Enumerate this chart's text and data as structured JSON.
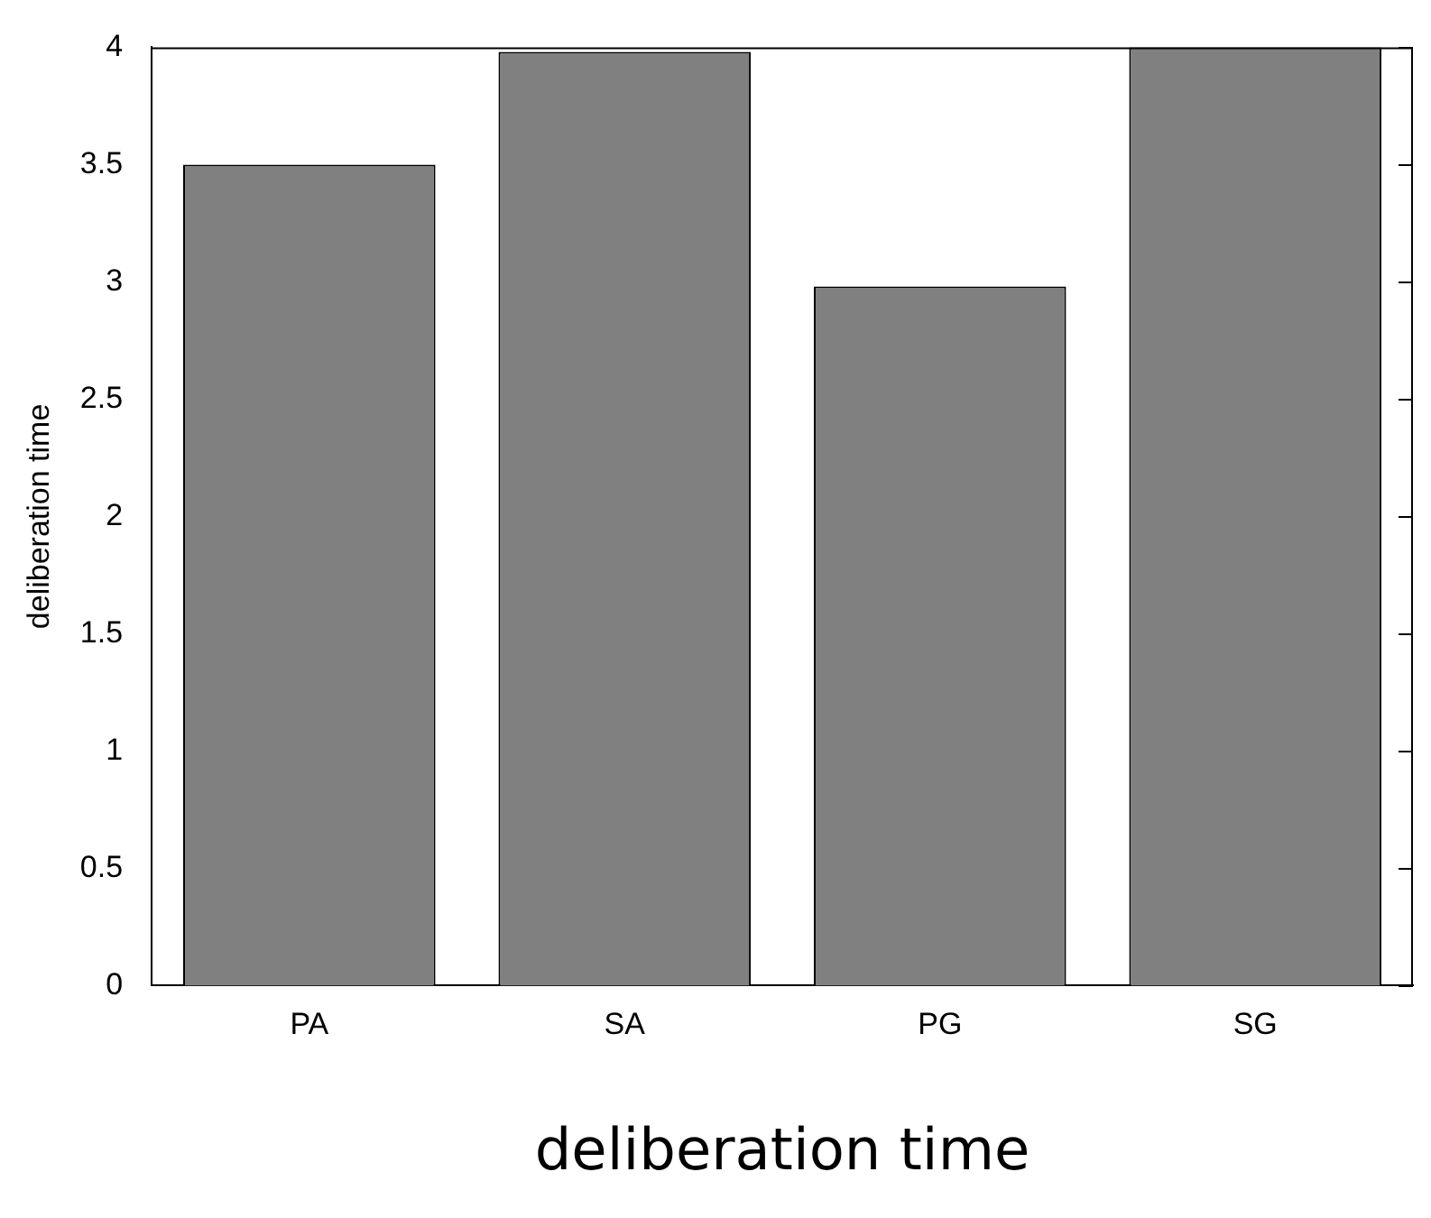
{
  "chart_data": {
    "type": "bar",
    "xlabel": "deliberation time",
    "ylabel": "deliberation time",
    "categories": [
      "PA",
      "SA",
      "PG",
      "SG"
    ],
    "values": [
      3.5,
      3.98,
      2.98,
      4.0
    ],
    "color": "#808080",
    "ylim": [
      0,
      4
    ],
    "yticks": [
      0,
      0.5,
      1,
      1.5,
      2,
      2.5,
      3,
      3.5,
      4
    ],
    "grid": false,
    "legend": false
  }
}
